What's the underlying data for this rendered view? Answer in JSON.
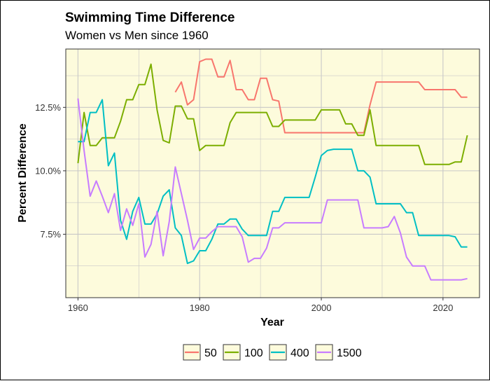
{
  "chart_data": {
    "type": "line",
    "title": "Swimming Time Difference",
    "subtitle": "Women vs Men since 1960",
    "xlabel": "Year",
    "ylabel": "Percent Difference",
    "xlim": [
      1958,
      2026
    ],
    "ylim": [
      5.0,
      14.8
    ],
    "x_ticks": [
      1960,
      1980,
      2000,
      2020
    ],
    "x_tick_labels": [
      "1960",
      "1980",
      "2000",
      "2020"
    ],
    "y_ticks": [
      7.5,
      10.0,
      12.5
    ],
    "y_tick_labels": [
      "7.5%",
      "10.0%",
      "12.5%"
    ],
    "grid": true,
    "legend_position": "bottom",
    "colors": {
      "panel_background": "#fdfbdc",
      "grid": "#c8c8c8"
    },
    "series": [
      {
        "name": "50",
        "color": "#f8766d",
        "points": [
          [
            1976,
            13.1
          ],
          [
            1977,
            13.5
          ],
          [
            1978,
            12.6
          ],
          [
            1979,
            12.8
          ],
          [
            1980,
            14.3
          ],
          [
            1981,
            14.4
          ],
          [
            1982,
            14.4
          ],
          [
            1983,
            13.7
          ],
          [
            1984,
            13.7
          ],
          [
            1985,
            14.35
          ],
          [
            1986,
            13.2
          ],
          [
            1987,
            13.2
          ],
          [
            1988,
            12.8
          ],
          [
            1989,
            12.8
          ],
          [
            1990,
            13.65
          ],
          [
            1991,
            13.65
          ],
          [
            1992,
            12.8
          ],
          [
            1993,
            12.75
          ],
          [
            1994,
            11.5
          ],
          [
            1996,
            11.5
          ],
          [
            2000,
            11.5
          ],
          [
            2005,
            11.5
          ],
          [
            2007,
            11.5
          ],
          [
            2008,
            12.6
          ],
          [
            2009,
            13.5
          ],
          [
            2013,
            13.5
          ],
          [
            2016,
            13.5
          ],
          [
            2017,
            13.2
          ],
          [
            2020,
            13.2
          ],
          [
            2022,
            13.2
          ],
          [
            2023,
            12.9
          ],
          [
            2024,
            12.9
          ]
        ]
      },
      {
        "name": "100",
        "color": "#7cae00",
        "points": [
          [
            1960,
            10.3
          ],
          [
            1961,
            12.3
          ],
          [
            1962,
            11.0
          ],
          [
            1963,
            11.0
          ],
          [
            1964,
            11.3
          ],
          [
            1966,
            11.3
          ],
          [
            1967,
            11.95
          ],
          [
            1968,
            12.8
          ],
          [
            1969,
            12.8
          ],
          [
            1970,
            13.4
          ],
          [
            1971,
            13.4
          ],
          [
            1972,
            14.2
          ],
          [
            1973,
            12.4
          ],
          [
            1974,
            11.2
          ],
          [
            1975,
            11.1
          ],
          [
            1976,
            12.55
          ],
          [
            1977,
            12.55
          ],
          [
            1978,
            12.05
          ],
          [
            1979,
            12.05
          ],
          [
            1980,
            10.8
          ],
          [
            1981,
            11.0
          ],
          [
            1983,
            11.0
          ],
          [
            1984,
            11.0
          ],
          [
            1985,
            11.9
          ],
          [
            1986,
            12.3
          ],
          [
            1988,
            12.3
          ],
          [
            1991,
            12.3
          ],
          [
            1992,
            11.75
          ],
          [
            1993,
            11.75
          ],
          [
            1994,
            12.0
          ],
          [
            1996,
            12.0
          ],
          [
            1999,
            12.0
          ],
          [
            2000,
            12.4
          ],
          [
            2003,
            12.4
          ],
          [
            2004,
            11.85
          ],
          [
            2005,
            11.85
          ],
          [
            2006,
            11.4
          ],
          [
            2007,
            11.4
          ],
          [
            2008,
            12.4
          ],
          [
            2009,
            11.0
          ],
          [
            2012,
            11.0
          ],
          [
            2016,
            11.0
          ],
          [
            2017,
            10.25
          ],
          [
            2020,
            10.25
          ],
          [
            2021,
            10.25
          ],
          [
            2022,
            10.35
          ],
          [
            2023,
            10.35
          ],
          [
            2024,
            11.4
          ]
        ]
      },
      {
        "name": "400",
        "color": "#00bfc4",
        "points": [
          [
            1960,
            11.15
          ],
          [
            1961,
            11.15
          ],
          [
            1962,
            12.3
          ],
          [
            1963,
            12.3
          ],
          [
            1964,
            12.8
          ],
          [
            1965,
            10.2
          ],
          [
            1966,
            10.7
          ],
          [
            1967,
            8.05
          ],
          [
            1968,
            7.3
          ],
          [
            1969,
            8.4
          ],
          [
            1970,
            8.95
          ],
          [
            1971,
            7.9
          ],
          [
            1972,
            7.9
          ],
          [
            1973,
            8.3
          ],
          [
            1974,
            9.0
          ],
          [
            1975,
            9.25
          ],
          [
            1976,
            7.75
          ],
          [
            1977,
            7.45
          ],
          [
            1978,
            6.35
          ],
          [
            1979,
            6.45
          ],
          [
            1980,
            6.85
          ],
          [
            1981,
            6.85
          ],
          [
            1982,
            7.3
          ],
          [
            1983,
            7.9
          ],
          [
            1984,
            7.9
          ],
          [
            1985,
            8.1
          ],
          [
            1986,
            8.1
          ],
          [
            1987,
            7.7
          ],
          [
            1988,
            7.45
          ],
          [
            1990,
            7.45
          ],
          [
            1991,
            7.45
          ],
          [
            1992,
            8.4
          ],
          [
            1993,
            8.4
          ],
          [
            1994,
            8.95
          ],
          [
            1996,
            8.95
          ],
          [
            1998,
            8.95
          ],
          [
            1999,
            9.75
          ],
          [
            2000,
            10.6
          ],
          [
            2001,
            10.8
          ],
          [
            2002,
            10.85
          ],
          [
            2004,
            10.85
          ],
          [
            2005,
            10.85
          ],
          [
            2006,
            10.0
          ],
          [
            2007,
            10.0
          ],
          [
            2008,
            9.75
          ],
          [
            2009,
            8.7
          ],
          [
            2011,
            8.7
          ],
          [
            2013,
            8.7
          ],
          [
            2014,
            8.35
          ],
          [
            2015,
            8.35
          ],
          [
            2016,
            7.45
          ],
          [
            2018,
            7.45
          ],
          [
            2021,
            7.45
          ],
          [
            2022,
            7.4
          ],
          [
            2023,
            7.0
          ],
          [
            2024,
            7.0
          ]
        ]
      },
      {
        "name": "1500",
        "color": "#c77cff",
        "points": [
          [
            1960,
            12.85
          ],
          [
            1961,
            10.8
          ],
          [
            1962,
            9.0
          ],
          [
            1963,
            9.6
          ],
          [
            1964,
            9.0
          ],
          [
            1965,
            8.35
          ],
          [
            1966,
            9.1
          ],
          [
            1967,
            7.65
          ],
          [
            1968,
            8.5
          ],
          [
            1969,
            7.85
          ],
          [
            1970,
            8.7
          ],
          [
            1971,
            6.6
          ],
          [
            1972,
            7.1
          ],
          [
            1973,
            8.4
          ],
          [
            1974,
            6.65
          ],
          [
            1975,
            8.0
          ],
          [
            1976,
            10.15
          ],
          [
            1977,
            9.1
          ],
          [
            1978,
            8.05
          ],
          [
            1979,
            6.9
          ],
          [
            1980,
            7.35
          ],
          [
            1981,
            7.35
          ],
          [
            1982,
            7.6
          ],
          [
            1983,
            7.8
          ],
          [
            1984,
            7.8
          ],
          [
            1986,
            7.8
          ],
          [
            1987,
            7.4
          ],
          [
            1988,
            6.4
          ],
          [
            1989,
            6.55
          ],
          [
            1990,
            6.55
          ],
          [
            1991,
            6.95
          ],
          [
            1992,
            7.75
          ],
          [
            1993,
            7.75
          ],
          [
            1994,
            7.95
          ],
          [
            1996,
            7.95
          ],
          [
            2000,
            7.95
          ],
          [
            2001,
            8.85
          ],
          [
            2003,
            8.85
          ],
          [
            2006,
            8.85
          ],
          [
            2007,
            7.75
          ],
          [
            2008,
            7.75
          ],
          [
            2010,
            7.75
          ],
          [
            2011,
            7.8
          ],
          [
            2012,
            8.2
          ],
          [
            2013,
            7.55
          ],
          [
            2014,
            6.6
          ],
          [
            2015,
            6.25
          ],
          [
            2016,
            6.25
          ],
          [
            2017,
            6.25
          ],
          [
            2018,
            5.7
          ],
          [
            2020,
            5.7
          ],
          [
            2023,
            5.7
          ],
          [
            2024,
            5.75
          ]
        ]
      }
    ]
  }
}
